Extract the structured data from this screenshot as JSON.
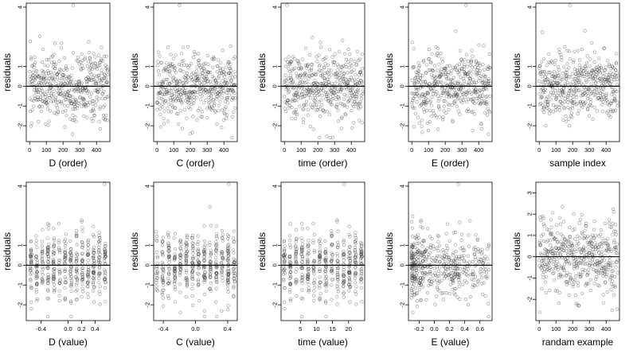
{
  "chart_data": [
    {
      "type": "scatter",
      "xlabel": "D (order)",
      "ylabel": "residuals",
      "xlim": [
        -20,
        480
      ],
      "ylim": [
        -2.8,
        4.2
      ],
      "x_ticks": [
        0,
        100,
        200,
        300,
        400
      ],
      "x_tick_labels": [
        "0",
        "100",
        "200",
        "300",
        "400"
      ],
      "y_ticks": [
        -2,
        -1,
        0,
        1,
        4
      ],
      "y_tick_labels": [
        "-2",
        "-1",
        "0",
        "1",
        "4"
      ],
      "hline": 0,
      "pattern": "order",
      "seed": 11
    },
    {
      "type": "scatter",
      "xlabel": "C (order)",
      "ylabel": "residuals",
      "xlim": [
        -20,
        480
      ],
      "ylim": [
        -2.8,
        4.2
      ],
      "x_ticks": [
        0,
        100,
        200,
        300,
        400
      ],
      "x_tick_labels": [
        "0",
        "100",
        "200",
        "300",
        "400"
      ],
      "y_ticks": [
        -2,
        -1,
        0,
        1,
        4
      ],
      "y_tick_labels": [
        "-2",
        "-1",
        "0",
        "1",
        "4"
      ],
      "hline": 0,
      "pattern": "order",
      "seed": 23
    },
    {
      "type": "scatter",
      "xlabel": "time (order)",
      "ylabel": "residuals",
      "xlim": [
        -20,
        480
      ],
      "ylim": [
        -2.8,
        4.2
      ],
      "x_ticks": [
        0,
        100,
        200,
        300,
        400
      ],
      "x_tick_labels": [
        "0",
        "100",
        "200",
        "300",
        "400"
      ],
      "y_ticks": [
        -2,
        -1,
        0,
        1,
        4
      ],
      "y_tick_labels": [
        "-2",
        "-1",
        "0",
        "1",
        "4"
      ],
      "hline": 0,
      "pattern": "order",
      "seed": 37
    },
    {
      "type": "scatter",
      "xlabel": "E (order)",
      "ylabel": "residuals",
      "xlim": [
        -20,
        480
      ],
      "ylim": [
        -2.8,
        4.2
      ],
      "x_ticks": [
        0,
        100,
        200,
        300,
        400
      ],
      "x_tick_labels": [
        "0",
        "100",
        "200",
        "300",
        "400"
      ],
      "y_ticks": [
        -2,
        -1,
        0,
        1,
        4
      ],
      "y_tick_labels": [
        "-2",
        "-1",
        "0",
        "1",
        "4"
      ],
      "hline": 0,
      "pattern": "order",
      "seed": 41
    },
    {
      "type": "scatter",
      "xlabel": "sample index",
      "ylabel": "residuals",
      "xlim": [
        -20,
        480
      ],
      "ylim": [
        -2.8,
        4.2
      ],
      "x_ticks": [
        0,
        100,
        200,
        300,
        400
      ],
      "x_tick_labels": [
        "0",
        "100",
        "200",
        "300",
        "400"
      ],
      "y_ticks": [
        -2,
        -1,
        0,
        1,
        4
      ],
      "y_tick_labels": [
        "-2",
        "-1",
        "0",
        "1",
        "4"
      ],
      "hline": 0,
      "pattern": "order",
      "seed": 53
    },
    {
      "type": "scatter",
      "xlabel": "D (value)",
      "ylabel": "residuals",
      "xlim": [
        -0.62,
        0.62
      ],
      "ylim": [
        -2.8,
        4.2
      ],
      "x_ticks": [
        -0.4,
        0.0,
        0.2,
        0.4
      ],
      "x_tick_labels": [
        "-0.4",
        "0.0",
        "0.2",
        "0.4"
      ],
      "y_ticks": [
        -2,
        -1,
        0,
        1,
        4
      ],
      "y_tick_labels": [
        "-2",
        "-1",
        "0",
        "1",
        "4"
      ],
      "hline": 0,
      "pattern": "value",
      "value_range": [
        -0.55,
        0.55
      ],
      "seed": 61
    },
    {
      "type": "scatter",
      "xlabel": "C (value)",
      "ylabel": "residuals",
      "xlim": [
        -0.52,
        0.52
      ],
      "ylim": [
        -2.8,
        4.2
      ],
      "x_ticks": [
        -0.4,
        0.0,
        0.4
      ],
      "x_tick_labels": [
        "-0.4",
        "0.0",
        "0.4"
      ],
      "y_ticks": [
        -2,
        -1,
        0,
        1,
        4
      ],
      "y_tick_labels": [
        "-2",
        "-1",
        "0",
        "1",
        "4"
      ],
      "hline": 0,
      "pattern": "value",
      "value_range": [
        -0.48,
        0.48
      ],
      "seed": 67
    },
    {
      "type": "scatter",
      "xlabel": "time (value)",
      "ylabel": "residuals",
      "xlim": [
        -1,
        25
      ],
      "ylim": [
        -2.8,
        4.2
      ],
      "x_ticks": [
        5,
        10,
        15,
        20
      ],
      "x_tick_labels": [
        "5",
        "10",
        "15",
        "20"
      ],
      "y_ticks": [
        -2,
        -1,
        0,
        1,
        4
      ],
      "y_tick_labels": [
        "-2",
        "-1",
        "0",
        "1",
        "4"
      ],
      "hline": 0,
      "pattern": "value",
      "value_range": [
        0,
        24
      ],
      "seed": 71
    },
    {
      "type": "scatter",
      "xlabel": "E (value)",
      "ylabel": "residuals",
      "xlim": [
        -0.34,
        0.76
      ],
      "ylim": [
        -2.8,
        4.2
      ],
      "x_ticks": [
        -0.2,
        0.0,
        0.2,
        0.4,
        0.6
      ],
      "x_tick_labels": [
        "-0.2",
        "0.0",
        "0.2",
        "0.4",
        "0.6"
      ],
      "y_ticks": [
        -2,
        -1,
        0,
        1,
        4
      ],
      "y_tick_labels": [
        "-2",
        "-1",
        "0",
        "1",
        "4"
      ],
      "hline": 0,
      "pattern": "skew",
      "value_range": [
        -0.3,
        0.72
      ],
      "seed": 79
    },
    {
      "type": "scatter",
      "xlabel": "randam example",
      "ylabel": "residuals",
      "xlim": [
        -20,
        480
      ],
      "ylim": [
        -3,
        3.5
      ],
      "x_ticks": [
        0,
        100,
        200,
        300,
        400
      ],
      "x_tick_labels": [
        "0",
        "100",
        "200",
        "300",
        "400"
      ],
      "y_ticks": [
        -2,
        -1,
        0,
        1,
        2,
        3
      ],
      "y_tick_labels": [
        "-2",
        "-1",
        "0",
        "1",
        "2",
        "3"
      ],
      "hline": 0,
      "pattern": "random",
      "seed": 97
    }
  ],
  "colors": {
    "point": "#3a3a3a",
    "line": "#000000",
    "frame": "#000000"
  }
}
